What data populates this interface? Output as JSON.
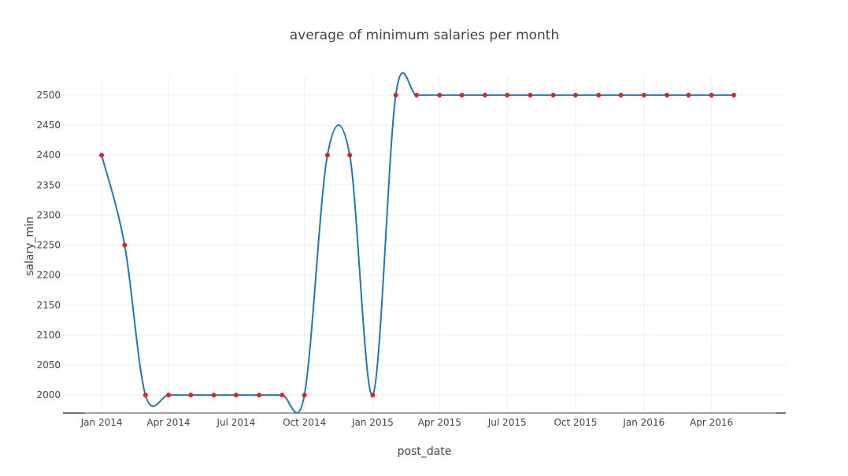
{
  "chart_data": {
    "type": "line",
    "title": "average of minimum salaries  per month",
    "xlabel": "post_date",
    "ylabel": "salary_min",
    "ylim": [
      1970,
      2530
    ],
    "xlim": [
      "2013-11-10",
      "2016-07-10"
    ],
    "x_tick_labels": [
      "Jan 2014",
      "Apr 2014",
      "Jul 2014",
      "Oct 2014",
      "Jan 2015",
      "Apr 2015",
      "Jul 2015",
      "Oct 2015",
      "Jan 2016",
      "Apr 2016"
    ],
    "x_tick_dates": [
      "2014-01-01",
      "2014-04-01",
      "2014-07-01",
      "2014-10-01",
      "2015-01-01",
      "2015-04-01",
      "2015-07-01",
      "2015-10-01",
      "2016-01-01",
      "2016-04-01"
    ],
    "y_ticks": [
      2000,
      2050,
      2100,
      2150,
      2200,
      2250,
      2300,
      2350,
      2400,
      2450,
      2500
    ],
    "grid": true,
    "line_shape": "spline",
    "series": [
      {
        "line_color": "#1f77b4",
        "marker_color": "#d62728",
        "x": [
          "2014-01-01",
          "2014-02-01",
          "2014-03-01",
          "2014-04-01",
          "2014-05-01",
          "2014-06-01",
          "2014-07-01",
          "2014-08-01",
          "2014-09-01",
          "2014-10-01",
          "2014-11-01",
          "2014-12-01",
          "2015-01-01",
          "2015-02-01",
          "2015-03-01",
          "2015-04-01",
          "2015-05-01",
          "2015-06-01",
          "2015-07-01",
          "2015-08-01",
          "2015-09-01",
          "2015-10-01",
          "2015-11-01",
          "2015-12-01",
          "2016-01-01",
          "2016-02-01",
          "2016-03-01",
          "2016-04-01",
          "2016-05-01"
        ],
        "y": [
          2400,
          2250,
          2000,
          2000,
          2000,
          2000,
          2000,
          2000,
          2000,
          2000,
          2400,
          2400,
          2000,
          2500,
          2500,
          2500,
          2500,
          2500,
          2500,
          2500,
          2500,
          2500,
          2500,
          2500,
          2500,
          2500,
          2500,
          2500,
          2500
        ]
      }
    ]
  }
}
